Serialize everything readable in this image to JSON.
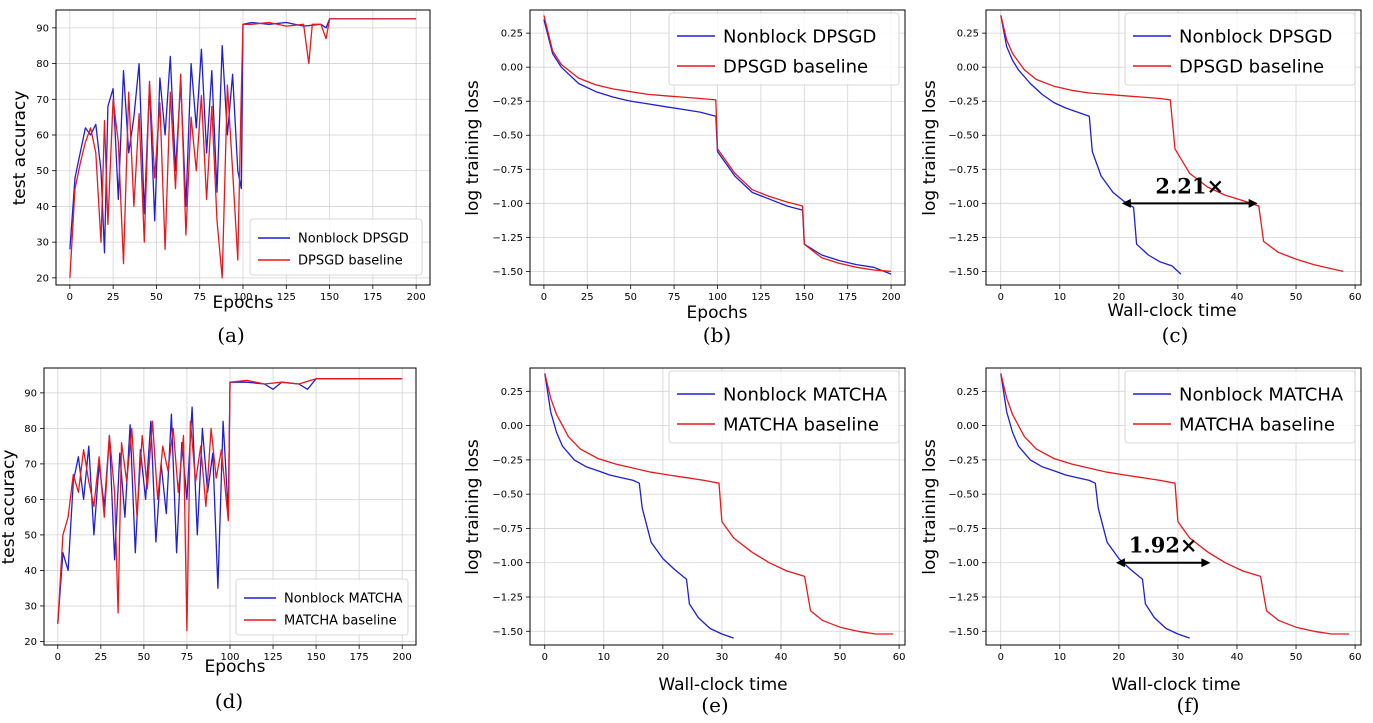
{
  "colors": {
    "nonblock": "#1f1fd6",
    "baseline": "#e8191c",
    "grid": "#d3d3d3"
  },
  "chart_data": [
    {
      "id": "a",
      "type": "line",
      "caption": "(a)",
      "xlabel": "Epochs",
      "ylabel": "test accuracy",
      "xlim": [
        -8,
        208
      ],
      "ylim": [
        18,
        95
      ],
      "xticks": [
        0,
        25,
        50,
        75,
        100,
        125,
        150,
        175,
        200
      ],
      "yticks": [
        20,
        30,
        40,
        50,
        60,
        70,
        80,
        90
      ],
      "ytick_labels": [
        "20",
        "30",
        "40",
        "50",
        "60",
        "70",
        "80",
        "90"
      ],
      "grid": true,
      "legend_position": "lower-right",
      "legend_size": "small",
      "series": [
        {
          "name": "Nonblock DPSGD",
          "color": "blue",
          "x": [
            0,
            3,
            6,
            9,
            12,
            15,
            18,
            20,
            22,
            25,
            28,
            31,
            34,
            37,
            40,
            43,
            46,
            49,
            52,
            55,
            58,
            61,
            64,
            67,
            70,
            73,
            76,
            79,
            82,
            85,
            88,
            91,
            94,
            97,
            99,
            100,
            105,
            115,
            125,
            135,
            145,
            148,
            150,
            175,
            200
          ],
          "y": [
            28,
            48,
            55,
            62,
            60,
            63,
            50,
            27,
            68,
            73,
            42,
            78,
            55,
            65,
            80,
            38,
            74,
            36,
            76,
            60,
            82,
            50,
            75,
            40,
            80,
            62,
            84,
            55,
            78,
            44,
            85,
            60,
            77,
            50,
            45,
            91,
            91.5,
            91,
            91.5,
            90.5,
            91,
            90,
            92.5,
            92.5,
            92.5
          ]
        },
        {
          "name": "DPSGD baseline",
          "color": "red",
          "x": [
            0,
            3,
            6,
            9,
            12,
            15,
            18,
            20,
            22,
            25,
            28,
            31,
            34,
            37,
            40,
            43,
            46,
            49,
            52,
            55,
            58,
            61,
            64,
            67,
            70,
            73,
            76,
            79,
            82,
            85,
            88,
            91,
            94,
            97,
            99,
            100,
            105,
            115,
            125,
            135,
            138,
            140,
            145,
            148,
            150,
            175,
            200
          ],
          "y": [
            20,
            45,
            52,
            58,
            62,
            55,
            30,
            64,
            35,
            70,
            58,
            24,
            72,
            40,
            66,
            30,
            75,
            48,
            69,
            28,
            72,
            45,
            77,
            32,
            65,
            50,
            71,
            42,
            68,
            36,
            20,
            74,
            50,
            25,
            72,
            91,
            91,
            91.5,
            90.5,
            91,
            80,
            91,
            91,
            87,
            92.5,
            92.5,
            92.5
          ]
        }
      ]
    },
    {
      "id": "b",
      "type": "line",
      "caption": "(b)",
      "xlabel": "Epochs",
      "ylabel": "log training loss",
      "xlim": [
        -8,
        208
      ],
      "ylim": [
        -1.6,
        0.42
      ],
      "xticks": [
        0,
        25,
        50,
        75,
        100,
        125,
        150,
        175,
        200
      ],
      "yticks": [
        0.25,
        0,
        -0.25,
        -0.5,
        -0.75,
        -1,
        -1.25,
        -1.5
      ],
      "ytick_labels": [
        "0.25",
        "0.00",
        "−0.25",
        "−0.50",
        "−0.75",
        "−1.00",
        "−1.25",
        "−1.50"
      ],
      "grid": true,
      "legend_position": "top-right",
      "legend_size": "large",
      "series": [
        {
          "name": "Nonblock DPSGD",
          "color": "blue",
          "x": [
            0,
            5,
            10,
            20,
            30,
            40,
            50,
            60,
            70,
            80,
            90,
            99,
            100,
            110,
            120,
            130,
            140,
            149,
            150,
            160,
            170,
            180,
            190,
            200
          ],
          "y": [
            0.35,
            0.1,
            0.0,
            -0.12,
            -0.18,
            -0.22,
            -0.25,
            -0.27,
            -0.29,
            -0.31,
            -0.33,
            -0.36,
            -0.62,
            -0.8,
            -0.92,
            -0.97,
            -1.02,
            -1.05,
            -1.3,
            -1.38,
            -1.42,
            -1.45,
            -1.47,
            -1.52
          ]
        },
        {
          "name": "DPSGD baseline",
          "color": "red",
          "x": [
            0,
            5,
            10,
            20,
            30,
            40,
            50,
            60,
            70,
            80,
            90,
            99,
            100,
            110,
            120,
            130,
            140,
            149,
            150,
            160,
            170,
            180,
            190,
            200
          ],
          "y": [
            0.38,
            0.12,
            0.02,
            -0.08,
            -0.13,
            -0.16,
            -0.18,
            -0.2,
            -0.21,
            -0.22,
            -0.23,
            -0.24,
            -0.6,
            -0.78,
            -0.9,
            -0.95,
            -0.99,
            -1.02,
            -1.3,
            -1.4,
            -1.44,
            -1.47,
            -1.49,
            -1.5
          ]
        }
      ]
    },
    {
      "id": "c",
      "type": "line",
      "caption": "(c)",
      "xlabel": "Wall-clock time",
      "ylabel": "log training loss",
      "xlim": [
        -2.5,
        61
      ],
      "ylim": [
        -1.6,
        0.42
      ],
      "xticks": [
        0,
        10,
        20,
        30,
        40,
        50,
        60
      ],
      "yticks": [
        0.25,
        0,
        -0.25,
        -0.5,
        -0.75,
        -1,
        -1.25,
        -1.5
      ],
      "ytick_labels": [
        "0.25",
        "0.00",
        "−0.25",
        "−0.50",
        "−0.75",
        "−1.00",
        "−1.25",
        "−1.50"
      ],
      "grid": true,
      "legend_position": "top-right",
      "legend_size": "large",
      "annotation": {
        "text": "2.21×",
        "x_start": 20.5,
        "x_end": 43.5,
        "y": -1.0
      },
      "series": [
        {
          "name": "Nonblock DPSGD",
          "color": "blue",
          "x": [
            0,
            1,
            2,
            3,
            5,
            7,
            9,
            11,
            13,
            15,
            15.5,
            17,
            19,
            21,
            22.5,
            23,
            25,
            27,
            29,
            30.5
          ],
          "y": [
            0.38,
            0.15,
            0.05,
            -0.02,
            -0.12,
            -0.2,
            -0.26,
            -0.3,
            -0.33,
            -0.36,
            -0.62,
            -0.8,
            -0.92,
            -0.99,
            -1.03,
            -1.3,
            -1.38,
            -1.43,
            -1.46,
            -1.52
          ]
        },
        {
          "name": "DPSGD baseline",
          "color": "red",
          "x": [
            0,
            1,
            2,
            4,
            6,
            9,
            12,
            15,
            18,
            21,
            24,
            27,
            28.7,
            29.5,
            32,
            35,
            38,
            41,
            43.7,
            44.5,
            47,
            50,
            53,
            56,
            58
          ],
          "y": [
            0.38,
            0.2,
            0.1,
            -0.02,
            -0.09,
            -0.14,
            -0.17,
            -0.19,
            -0.2,
            -0.21,
            -0.22,
            -0.23,
            -0.24,
            -0.6,
            -0.78,
            -0.88,
            -0.94,
            -0.98,
            -1.02,
            -1.28,
            -1.36,
            -1.41,
            -1.45,
            -1.48,
            -1.5
          ]
        }
      ]
    },
    {
      "id": "d",
      "type": "line",
      "caption": "(d)",
      "xlabel": "Epochs",
      "ylabel": "test accuracy",
      "xlim": [
        -8,
        208
      ],
      "ylim": [
        19,
        97
      ],
      "xticks": [
        0,
        25,
        50,
        75,
        100,
        125,
        150,
        175,
        200
      ],
      "yticks": [
        20,
        30,
        40,
        50,
        60,
        70,
        80,
        90
      ],
      "ytick_labels": [
        "20",
        "30",
        "40",
        "50",
        "60",
        "70",
        "80",
        "90"
      ],
      "grid": true,
      "legend_position": "lower-right",
      "legend_size": "small",
      "series": [
        {
          "name": "Nonblock MATCHA",
          "color": "blue",
          "x": [
            0,
            3,
            6,
            9,
            12,
            15,
            18,
            21,
            24,
            27,
            30,
            33,
            36,
            39,
            42,
            45,
            48,
            51,
            54,
            57,
            60,
            63,
            66,
            69,
            72,
            75,
            78,
            81,
            84,
            87,
            90,
            93,
            96,
            99,
            100,
            110,
            120,
            125,
            130,
            140,
            145,
            150,
            175,
            200
          ],
          "y": [
            25,
            45,
            40,
            65,
            72,
            60,
            75,
            50,
            70,
            58,
            78,
            43,
            73,
            55,
            81,
            45,
            74,
            60,
            82,
            48,
            70,
            56,
            84,
            45,
            76,
            60,
            86,
            50,
            80,
            62,
            73,
            35,
            82,
            56,
            93,
            93,
            92.5,
            91,
            93,
            92.5,
            91,
            94,
            94,
            94
          ]
        },
        {
          "name": "MATCHA baseline",
          "color": "red",
          "x": [
            0,
            3,
            6,
            9,
            12,
            15,
            18,
            21,
            24,
            27,
            30,
            33,
            35,
            37,
            40,
            43,
            46,
            49,
            52,
            55,
            58,
            61,
            64,
            67,
            70,
            73,
            75,
            77,
            80,
            83,
            86,
            89,
            92,
            95,
            99,
            100,
            110,
            120,
            130,
            140,
            150,
            175,
            200
          ],
          "y": [
            25,
            50,
            55,
            67,
            62,
            74,
            65,
            58,
            72,
            55,
            78,
            62,
            28,
            76,
            65,
            80,
            55,
            78,
            63,
            82,
            60,
            75,
            68,
            80,
            62,
            78,
            23,
            82,
            65,
            75,
            58,
            80,
            66,
            74,
            54,
            93,
            93.5,
            92.5,
            93,
            92.5,
            94,
            94,
            94
          ]
        }
      ]
    },
    {
      "id": "e",
      "type": "line",
      "caption": "(e)",
      "xlabel": "Wall-clock time",
      "ylabel": "log training loss",
      "xlim": [
        -2.5,
        61
      ],
      "ylim": [
        -1.6,
        0.42
      ],
      "xticks": [
        0,
        10,
        20,
        30,
        40,
        50,
        60
      ],
      "yticks": [
        0.25,
        0,
        -0.25,
        -0.5,
        -0.75,
        -1,
        -1.25,
        -1.5
      ],
      "ytick_labels": [
        "0.25",
        "0.00",
        "−0.25",
        "−0.50",
        "−0.75",
        "−1.00",
        "−1.25",
        "−1.50"
      ],
      "grid": true,
      "legend_position": "top-right",
      "legend_size": "large",
      "series": [
        {
          "name": "Nonblock MATCHA",
          "color": "blue",
          "x": [
            0,
            1,
            2,
            3,
            5,
            7,
            9,
            11,
            13,
            15,
            16,
            16.5,
            18,
            20,
            22,
            24,
            24.5,
            26,
            28,
            30,
            32
          ],
          "y": [
            0.38,
            0.1,
            -0.05,
            -0.15,
            -0.25,
            -0.3,
            -0.33,
            -0.36,
            -0.38,
            -0.4,
            -0.42,
            -0.6,
            -0.85,
            -0.97,
            -1.05,
            -1.12,
            -1.3,
            -1.4,
            -1.48,
            -1.52,
            -1.55
          ]
        },
        {
          "name": "MATCHA baseline",
          "color": "red",
          "x": [
            0,
            1,
            2,
            4,
            6,
            9,
            12,
            15,
            18,
            21,
            24,
            27,
            29.5,
            30,
            32,
            35,
            38,
            41,
            44,
            45,
            47,
            50,
            53,
            56,
            59
          ],
          "y": [
            0.38,
            0.2,
            0.08,
            -0.08,
            -0.17,
            -0.24,
            -0.28,
            -0.31,
            -0.34,
            -0.36,
            -0.38,
            -0.4,
            -0.42,
            -0.7,
            -0.82,
            -0.92,
            -1.0,
            -1.06,
            -1.1,
            -1.35,
            -1.42,
            -1.47,
            -1.5,
            -1.52,
            -1.52
          ]
        }
      ]
    },
    {
      "id": "f",
      "type": "line",
      "caption": "(f)",
      "xlabel": "Wall-clock time",
      "ylabel": "log training loss",
      "xlim": [
        -2.5,
        61
      ],
      "ylim": [
        -1.6,
        0.42
      ],
      "xticks": [
        0,
        10,
        20,
        30,
        40,
        50,
        60
      ],
      "yticks": [
        0.25,
        0,
        -0.25,
        -0.5,
        -0.75,
        -1,
        -1.25,
        -1.5
      ],
      "ytick_labels": [
        "0.25",
        "0.00",
        "−0.25",
        "−0.50",
        "−0.75",
        "−1.00",
        "−1.25",
        "−1.50"
      ],
      "grid": true,
      "legend_position": "top-right",
      "legend_size": "large",
      "annotation": {
        "text": "1.92×",
        "x_start": 19.5,
        "x_end": 35.5,
        "y": -1.0
      },
      "series": [
        {
          "name": "Nonblock MATCHA",
          "color": "blue",
          "x": [
            0,
            1,
            2,
            3,
            5,
            7,
            9,
            11,
            13,
            15,
            16,
            16.5,
            18,
            20,
            22,
            24,
            24.5,
            26,
            28,
            30,
            32
          ],
          "y": [
            0.38,
            0.1,
            -0.05,
            -0.15,
            -0.25,
            -0.3,
            -0.33,
            -0.36,
            -0.38,
            -0.4,
            -0.42,
            -0.6,
            -0.85,
            -0.97,
            -1.05,
            -1.12,
            -1.3,
            -1.4,
            -1.48,
            -1.52,
            -1.55
          ]
        },
        {
          "name": "MATCHA baseline",
          "color": "red",
          "x": [
            0,
            1,
            2,
            4,
            6,
            9,
            12,
            15,
            18,
            21,
            24,
            27,
            29.5,
            30,
            32,
            35,
            38,
            41,
            44,
            45,
            47,
            50,
            53,
            56,
            59
          ],
          "y": [
            0.38,
            0.2,
            0.08,
            -0.08,
            -0.17,
            -0.24,
            -0.28,
            -0.31,
            -0.34,
            -0.36,
            -0.38,
            -0.4,
            -0.42,
            -0.7,
            -0.82,
            -0.92,
            -1.0,
            -1.06,
            -1.1,
            -1.35,
            -1.42,
            -1.47,
            -1.5,
            -1.52,
            -1.52
          ]
        }
      ]
    }
  ]
}
